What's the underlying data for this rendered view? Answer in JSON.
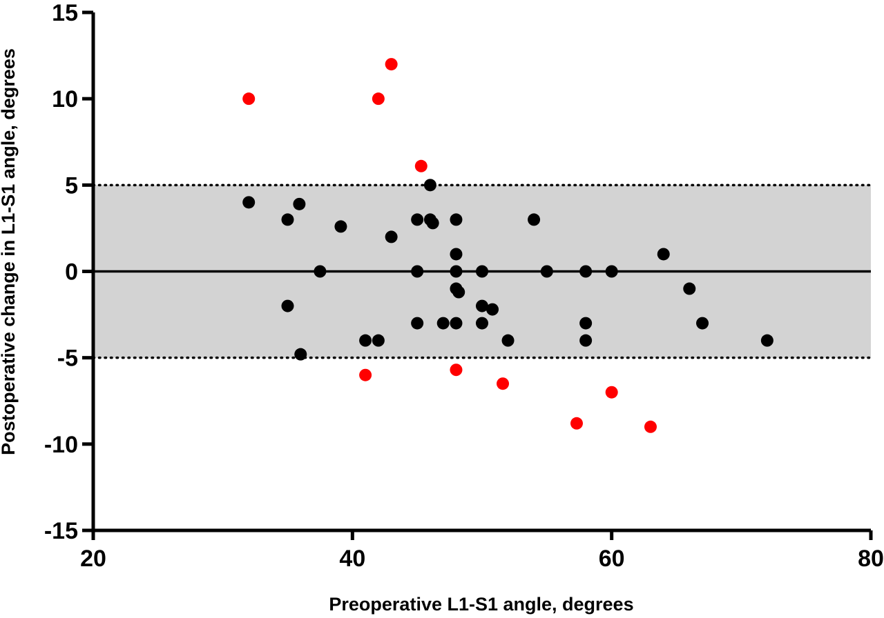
{
  "chart_data": {
    "type": "scatter",
    "title": "",
    "xlabel": "Preoperative L1-S1 angle, degrees",
    "ylabel": "Postoperative change in L1-S1 angle, degrees",
    "xlim": [
      20,
      80
    ],
    "ylim": [
      -15,
      15
    ],
    "x_ticks": [
      "20",
      "40",
      "60",
      "80"
    ],
    "y_ticks": [
      "15",
      "10",
      "5",
      "0",
      "-5",
      "-10",
      "-15"
    ],
    "grid": false,
    "legend": "none",
    "band": {
      "from": -5,
      "to": 5,
      "color": "#d3d3d3",
      "edge_style": "dotted"
    },
    "reference_line": 0,
    "series": [
      {
        "color": "#000000",
        "points": [
          [
            32,
            4
          ],
          [
            35,
            3
          ],
          [
            35.9,
            3.9
          ],
          [
            39.1,
            2.6
          ],
          [
            43,
            2
          ],
          [
            45,
            3
          ],
          [
            46,
            3
          ],
          [
            46.2,
            2.8
          ],
          [
            48,
            3
          ],
          [
            54,
            3
          ],
          [
            46,
            5
          ],
          [
            48,
            1
          ],
          [
            64,
            1
          ],
          [
            37.5,
            0
          ],
          [
            45,
            0
          ],
          [
            48,
            0
          ],
          [
            50,
            0
          ],
          [
            55,
            0
          ],
          [
            58,
            0
          ],
          [
            60,
            0
          ],
          [
            48,
            -1
          ],
          [
            48.2,
            -1.2
          ],
          [
            66,
            -1
          ],
          [
            35,
            -2
          ],
          [
            50,
            -2
          ],
          [
            50.8,
            -2.2
          ],
          [
            45,
            -3
          ],
          [
            47,
            -3
          ],
          [
            48,
            -3
          ],
          [
            50,
            -3
          ],
          [
            58,
            -3
          ],
          [
            67,
            -3
          ],
          [
            41,
            -4
          ],
          [
            42,
            -4
          ],
          [
            52,
            -4
          ],
          [
            58,
            -4
          ],
          [
            72,
            -4
          ],
          [
            36,
            -4.8
          ]
        ]
      },
      {
        "color": "#ff0000",
        "points": [
          [
            32,
            10
          ],
          [
            42,
            10
          ],
          [
            43,
            12
          ],
          [
            45.3,
            6.1
          ],
          [
            41,
            -6
          ],
          [
            48,
            -5.7
          ],
          [
            51.6,
            -6.5
          ],
          [
            57.3,
            -8.8
          ],
          [
            60,
            -7
          ],
          [
            63,
            -9
          ]
        ]
      }
    ]
  }
}
